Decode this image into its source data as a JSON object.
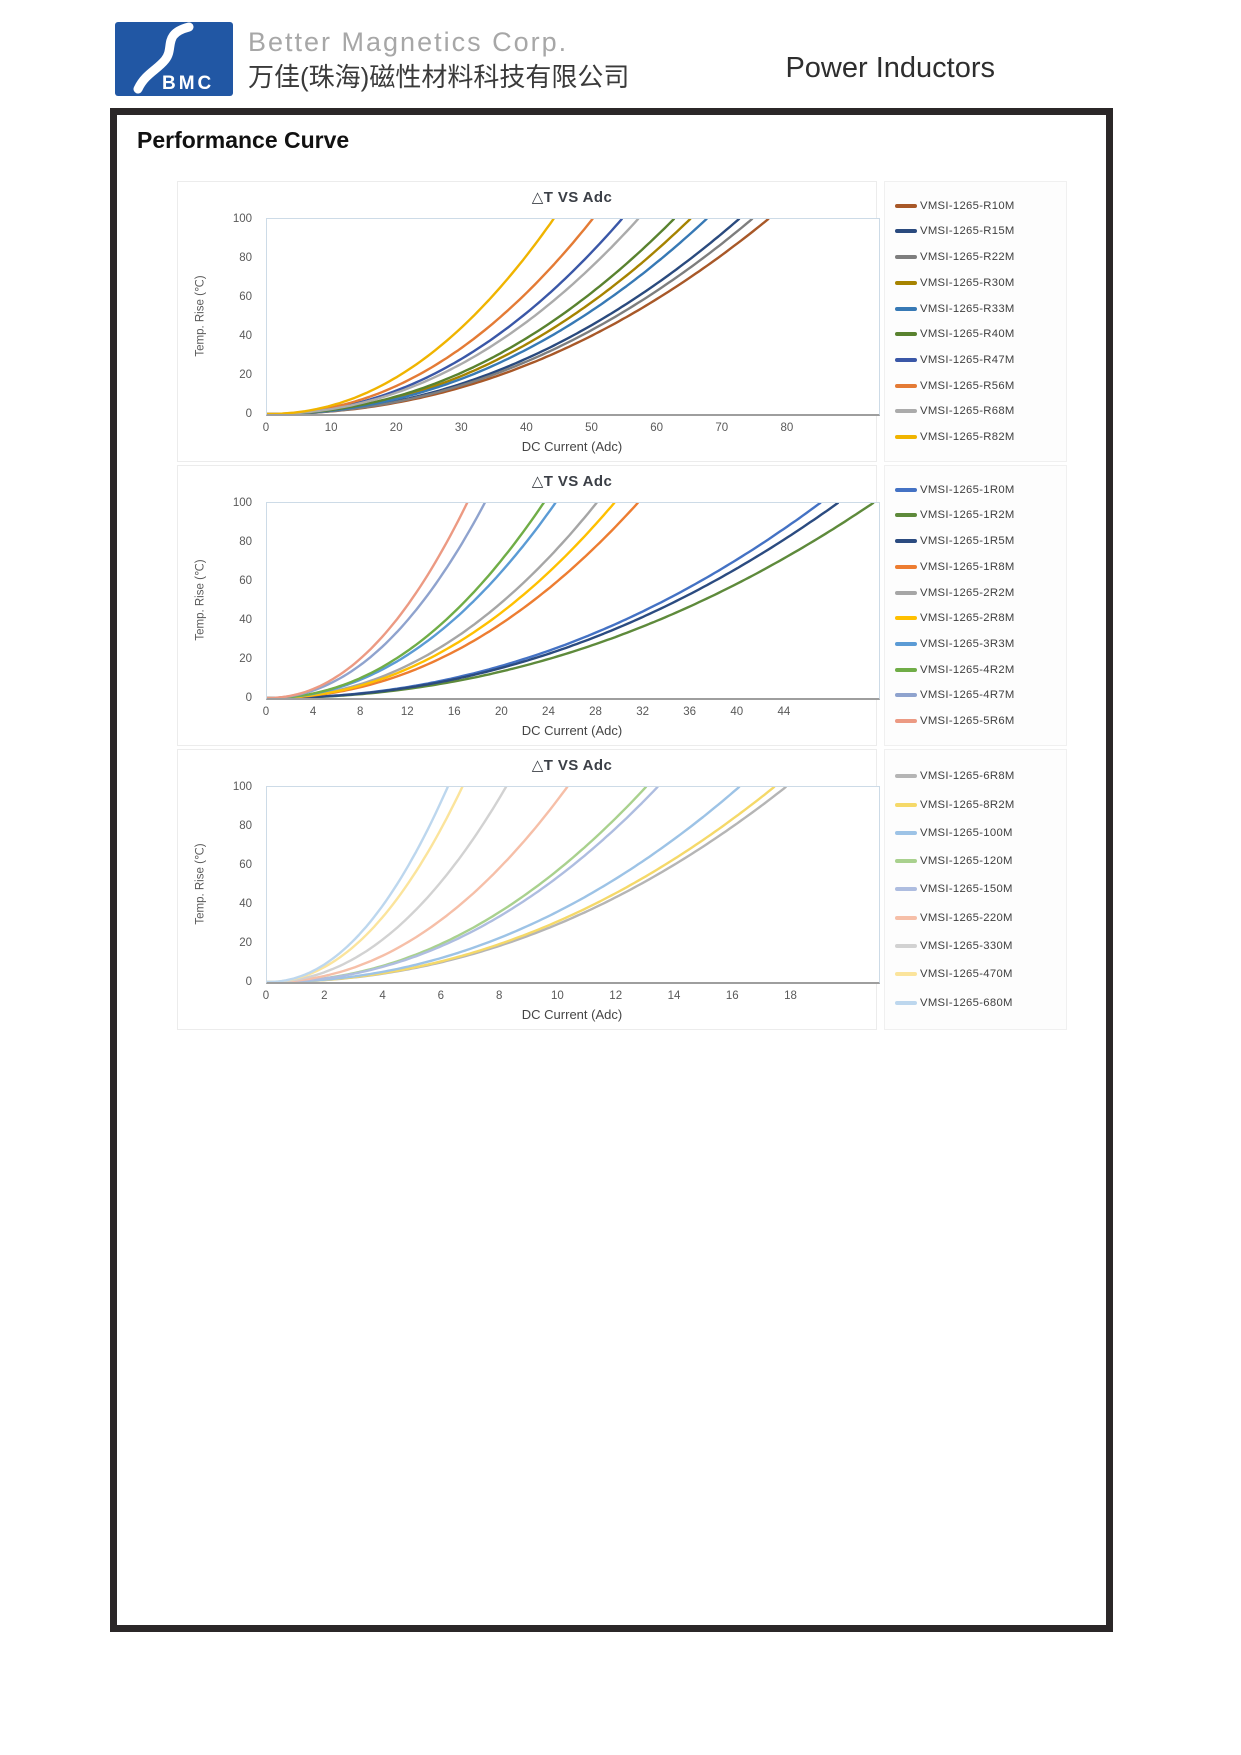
{
  "header": {
    "logo_text": "BMC",
    "logo_color": "#2157A4",
    "brand_en": "Better Magnetics Corp.",
    "brand_zh": "万佳(珠海)磁性材料科技有限公司",
    "product_title": "Power Inductors"
  },
  "section_title": "Performance Curve",
  "chart_data": [
    {
      "type": "line",
      "title": "△T VS Adc",
      "xlabel": "DC Current (Adc)",
      "ylabel": "Temp. Rise (℃)",
      "xlim": [
        0,
        94
      ],
      "ylim": [
        0,
        100
      ],
      "xticks": [
        0,
        10,
        20,
        30,
        40,
        50,
        60,
        70,
        80
      ],
      "yticks": [
        0,
        20,
        40,
        60,
        80,
        100
      ],
      "grid": false,
      "legend_position": "right",
      "curve_model": "deltaT = 100 * (I / i_100C)^2.1",
      "series": [
        {
          "name": "VMSI-1265-R10M",
          "color": "#A85828",
          "i_100C": 77.0
        },
        {
          "name": "VMSI-1265-R15M",
          "color": "#2A4A7E",
          "i_100C": 72.5
        },
        {
          "name": "VMSI-1265-R22M",
          "color": "#7E7E7E",
          "i_100C": 74.5
        },
        {
          "name": "VMSI-1265-R30M",
          "color": "#A68300",
          "i_100C": 65.0
        },
        {
          "name": "VMSI-1265-R33M",
          "color": "#3779B5",
          "i_100C": 67.5
        },
        {
          "name": "VMSI-1265-R40M",
          "color": "#59822F",
          "i_100C": 62.5
        },
        {
          "name": "VMSI-1265-R47M",
          "color": "#3A57A7",
          "i_100C": 54.5
        },
        {
          "name": "VMSI-1265-R56M",
          "color": "#E47B35",
          "i_100C": 50.0
        },
        {
          "name": "VMSI-1265-R68M",
          "color": "#ABABAB",
          "i_100C": 57.0
        },
        {
          "name": "VMSI-1265-R82M",
          "color": "#F0B400",
          "i_100C": 44.0
        }
      ]
    },
    {
      "type": "line",
      "title": "△T VS Adc",
      "xlabel": "DC Current (Adc)",
      "ylabel": "Temp. Rise (℃)",
      "xlim": [
        0,
        52
      ],
      "ylim": [
        0,
        100
      ],
      "xticks": [
        0,
        4,
        8,
        12,
        16,
        20,
        24,
        28,
        32,
        36,
        40,
        44
      ],
      "yticks": [
        0,
        20,
        40,
        60,
        80,
        100
      ],
      "grid": false,
      "legend_position": "right",
      "curve_model": "deltaT = 100 * (I / i_100C)^2.1",
      "series": [
        {
          "name": "VMSI-1265-1R0M",
          "color": "#4472C4",
          "i_100C": 47.0
        },
        {
          "name": "VMSI-1265-1R2M",
          "color": "#5E8A3B",
          "i_100C": 51.5
        },
        {
          "name": "VMSI-1265-1R5M",
          "color": "#2B4B80",
          "i_100C": 48.5
        },
        {
          "name": "VMSI-1265-1R8M",
          "color": "#ED7D31",
          "i_100C": 31.5
        },
        {
          "name": "VMSI-1265-2R2M",
          "color": "#A6A6A6",
          "i_100C": 28.0
        },
        {
          "name": "VMSI-1265-2R8M",
          "color": "#FFC000",
          "i_100C": 29.5
        },
        {
          "name": "VMSI-1265-3R3M",
          "color": "#5B9BD5",
          "i_100C": 24.5
        },
        {
          "name": "VMSI-1265-4R2M",
          "color": "#70AD47",
          "i_100C": 23.5
        },
        {
          "name": "VMSI-1265-4R7M",
          "color": "#8FA3CE",
          "i_100C": 18.5
        },
        {
          "name": "VMSI-1265-5R6M",
          "color": "#EC9A83",
          "i_100C": 17.0
        }
      ]
    },
    {
      "type": "line",
      "title": "△T VS Adc",
      "xlabel": "DC Current (Adc)",
      "ylabel": "Temp. Rise (℃)",
      "xlim": [
        0,
        21
      ],
      "ylim": [
        0,
        100
      ],
      "xticks": [
        0,
        2,
        4,
        6,
        8,
        10,
        12,
        14,
        16,
        18
      ],
      "yticks": [
        0,
        20,
        40,
        60,
        80,
        100
      ],
      "grid": false,
      "legend_position": "right",
      "curve_model": "deltaT = 100 * (I / i_100C)^2.1",
      "series": [
        {
          "name": "VMSI-1265-6R8M",
          "color": "#B5B5B5",
          "i_100C": 17.8
        },
        {
          "name": "VMSI-1265-8R2M",
          "color": "#F5D969",
          "i_100C": 17.4
        },
        {
          "name": "VMSI-1265-100M",
          "color": "#9DC3E6",
          "i_100C": 16.2
        },
        {
          "name": "VMSI-1265-120M",
          "color": "#A9D18E",
          "i_100C": 13.0
        },
        {
          "name": "VMSI-1265-150M",
          "color": "#AEBDE0",
          "i_100C": 13.4
        },
        {
          "name": "VMSI-1265-220M",
          "color": "#F6BFA8",
          "i_100C": 10.3
        },
        {
          "name": "VMSI-1265-330M",
          "color": "#D2D2D2",
          "i_100C": 8.2
        },
        {
          "name": "VMSI-1265-470M",
          "color": "#FBE49C",
          "i_100C": 6.7
        },
        {
          "name": "VMSI-1265-680M",
          "color": "#BDD7EE",
          "i_100C": 6.2
        }
      ]
    }
  ]
}
